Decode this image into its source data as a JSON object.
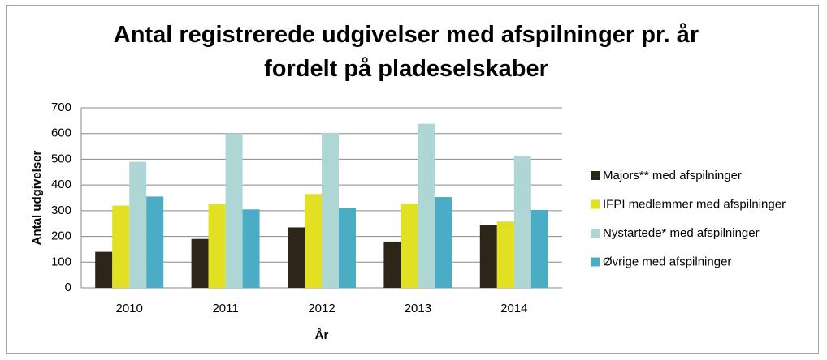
{
  "chart_data": {
    "type": "bar",
    "title": "Antal registrerede udgivelser med afspilninger pr. år fordelt på pladeselskaber",
    "x_label": "År",
    "y_label": "Antal udgivelser",
    "categories": [
      "2010",
      "2011",
      "2012",
      "2013",
      "2014"
    ],
    "series": [
      {
        "name": "Majors** med afspilninger",
        "color": "#2e2519",
        "values": [
          140,
          190,
          235,
          180,
          243
        ]
      },
      {
        "name": "IFPI medlemmer med afspilninger",
        "color": "#e2e022",
        "values": [
          320,
          325,
          365,
          328,
          258
        ]
      },
      {
        "name": "Nystartede* med afspilninger",
        "color": "#aed6d4",
        "values": [
          490,
          600,
          603,
          638,
          512
        ]
      },
      {
        "name": "Øvrige med afspilninger",
        "color": "#4bacc6",
        "values": [
          355,
          305,
          310,
          353,
          303
        ]
      }
    ],
    "ylim": [
      0,
      700
    ],
    "yticks": [
      0,
      100,
      200,
      300,
      400,
      500,
      600,
      700
    ],
    "grid": true,
    "legend": "right"
  }
}
